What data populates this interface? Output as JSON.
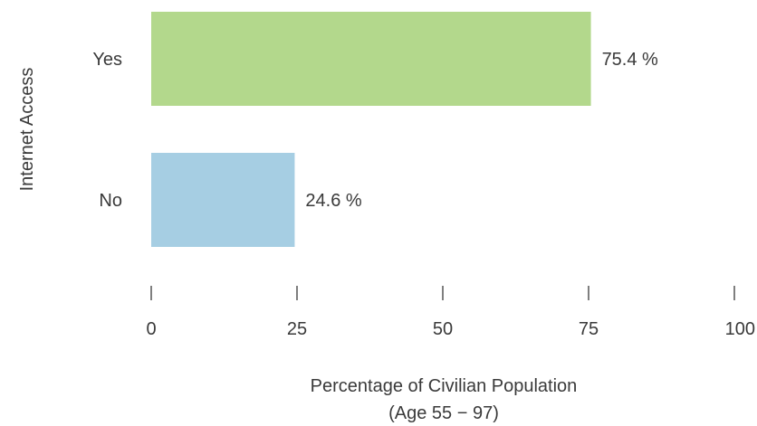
{
  "chart_data": {
    "type": "bar",
    "orientation": "horizontal",
    "categories": [
      "Yes",
      "No"
    ],
    "values": [
      75.4,
      24.6
    ],
    "value_labels": [
      "75.4 %",
      "24.6 %"
    ],
    "bar_colors": [
      "#b3d88c",
      "#a6cee3"
    ],
    "xlabel_lines": [
      "Percentage of Civilian Population",
      "(Age 55 − 97)"
    ],
    "ylabel": "Internet Access",
    "xlim": [
      0,
      100
    ],
    "xticks": [
      0,
      25,
      50,
      75,
      100
    ],
    "grid": false,
    "legend": "none"
  }
}
